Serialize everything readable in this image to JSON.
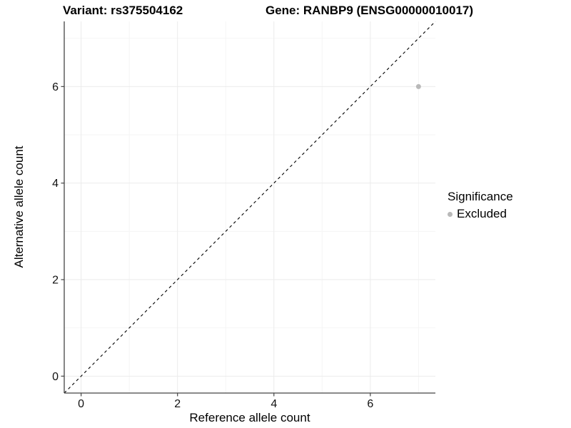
{
  "chart_data": {
    "type": "scatter",
    "title_left": "Variant: rs375504162",
    "title_right": "Gene: RANBP9 (ENSG00000010017)",
    "xlabel": "Reference allele count",
    "ylabel": "Alternative allele count",
    "xlim": [
      -0.35,
      7.35
    ],
    "ylim": [
      -0.35,
      7.35
    ],
    "x_major_ticks": [
      0,
      2,
      4,
      6
    ],
    "x_minor_ticks": [
      1,
      3,
      5,
      7
    ],
    "y_major_ticks": [
      0,
      2,
      4,
      6
    ],
    "y_minor_ticks": [
      1,
      3,
      5,
      7
    ],
    "grid": true,
    "reference_line": {
      "kind": "identity",
      "style": "dashed",
      "color": "#000000"
    },
    "series": [
      {
        "name": "Excluded",
        "color": "#b9b9b9",
        "points": [
          {
            "x": 7,
            "y": 6
          }
        ]
      }
    ],
    "legend": {
      "title": "Significance",
      "position": "right",
      "items": [
        {
          "label": "Excluded",
          "color": "#b9b9b9"
        }
      ]
    },
    "colors": {
      "axis_line": "#444444",
      "tick_label": "#111111",
      "grid_major": "#ebebeb",
      "grid_minor": "#f5f5f5"
    }
  }
}
